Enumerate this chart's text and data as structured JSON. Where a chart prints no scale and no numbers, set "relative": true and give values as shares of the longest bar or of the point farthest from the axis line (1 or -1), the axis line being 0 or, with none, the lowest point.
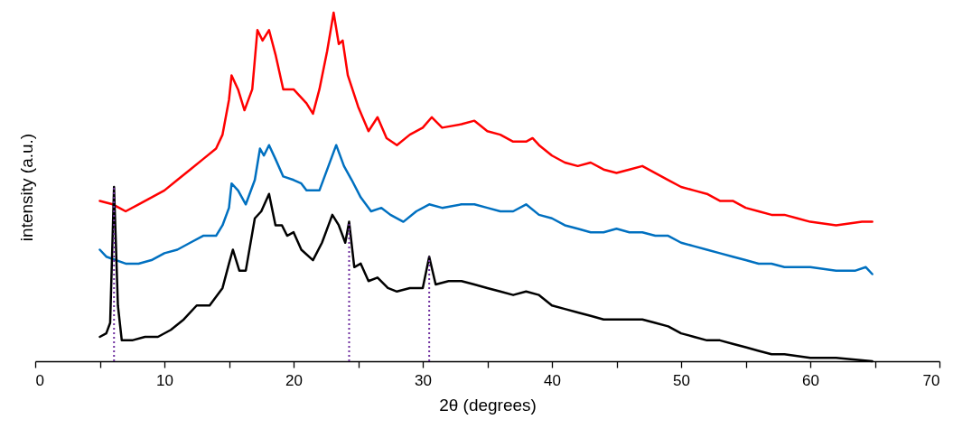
{
  "chart_data": {
    "type": "line",
    "relative": true,
    "xlabel": "2θ (degrees)",
    "ylabel": "intensity (a.u.)",
    "xlim": [
      0,
      70
    ],
    "xticks": [
      0,
      {
        "value": 5,
        "label": null
      },
      10,
      {
        "value": 15,
        "label": null
      },
      20,
      {
        "value": 25,
        "label": null
      },
      30,
      {
        "value": 35,
        "label": null
      },
      40,
      {
        "value": 45,
        "label": null
      },
      50,
      {
        "value": 55,
        "label": null
      },
      60,
      {
        "value": 65,
        "label": null
      },
      70
    ],
    "grid": false,
    "marker": "none",
    "line_style": "solid",
    "series": [
      {
        "color": "#ff0000",
        "x": [
          5,
          6,
          6.5,
          7,
          8,
          9,
          10,
          11,
          12,
          13,
          14,
          14.5,
          15,
          15.2,
          15.7,
          16.2,
          16.8,
          17.2,
          17.6,
          18.1,
          18.6,
          19.2,
          20,
          21,
          21.5,
          22,
          22.6,
          23.1,
          23.5,
          23.8,
          24.2,
          25,
          25.8,
          26.5,
          27.2,
          28,
          29,
          30,
          30.7,
          31.5,
          33,
          34,
          35,
          36,
          37,
          38,
          38.5,
          39,
          40,
          41,
          42,
          43,
          44,
          45,
          46,
          47,
          48,
          49,
          50,
          51,
          52,
          53,
          54,
          55,
          56,
          57,
          58,
          59,
          60,
          62,
          64,
          64.8
        ],
        "values": [
          0.46,
          0.45,
          0.44,
          0.43,
          0.45,
          0.47,
          0.49,
          0.52,
          0.55,
          0.58,
          0.61,
          0.65,
          0.75,
          0.82,
          0.78,
          0.72,
          0.78,
          0.95,
          0.92,
          0.95,
          0.88,
          0.78,
          0.78,
          0.74,
          0.71,
          0.78,
          0.89,
          1.0,
          0.91,
          0.92,
          0.82,
          0.73,
          0.66,
          0.7,
          0.64,
          0.62,
          0.65,
          0.67,
          0.7,
          0.67,
          0.68,
          0.69,
          0.66,
          0.65,
          0.63,
          0.63,
          0.64,
          0.62,
          0.59,
          0.57,
          0.56,
          0.57,
          0.55,
          0.54,
          0.55,
          0.56,
          0.54,
          0.52,
          0.5,
          0.49,
          0.48,
          0.46,
          0.46,
          0.44,
          0.43,
          0.42,
          0.42,
          0.41,
          0.4,
          0.39,
          0.4,
          0.4
        ]
      },
      {
        "color": "#0070c0",
        "x": [
          5,
          5.5,
          7,
          8,
          9,
          10,
          11,
          12,
          13,
          14,
          14.5,
          15,
          15.2,
          15.7,
          16.3,
          17,
          17.4,
          17.7,
          18.1,
          18.6,
          19.2,
          20,
          20.6,
          21,
          22,
          22.7,
          23.3,
          23.9,
          24.5,
          25.2,
          26,
          26.8,
          27.5,
          28.5,
          29.5,
          30.5,
          31.5,
          33,
          34,
          35,
          36,
          37,
          38,
          39,
          40,
          41,
          42,
          43,
          44,
          45,
          46,
          47,
          48,
          49,
          50,
          51,
          52,
          53,
          54,
          55,
          56,
          57,
          58,
          60,
          62,
          63.5,
          64.3,
          64.8
        ],
        "values": [
          0.32,
          0.3,
          0.28,
          0.28,
          0.29,
          0.31,
          0.32,
          0.34,
          0.36,
          0.36,
          0.39,
          0.44,
          0.51,
          0.49,
          0.45,
          0.52,
          0.61,
          0.59,
          0.62,
          0.58,
          0.53,
          0.52,
          0.51,
          0.49,
          0.49,
          0.56,
          0.62,
          0.56,
          0.52,
          0.47,
          0.43,
          0.44,
          0.42,
          0.4,
          0.43,
          0.45,
          0.44,
          0.45,
          0.45,
          0.44,
          0.43,
          0.43,
          0.45,
          0.42,
          0.41,
          0.39,
          0.38,
          0.37,
          0.37,
          0.38,
          0.37,
          0.37,
          0.36,
          0.36,
          0.34,
          0.33,
          0.32,
          0.31,
          0.3,
          0.29,
          0.28,
          0.28,
          0.27,
          0.27,
          0.26,
          0.26,
          0.27,
          0.25
        ]
      },
      {
        "color": "#000000",
        "x": [
          5,
          5.5,
          5.8,
          6.1,
          6.4,
          6.7,
          7.5,
          8.5,
          9.5,
          10.5,
          11.5,
          12.5,
          13.5,
          14.5,
          15,
          15.3,
          15.8,
          16.3,
          17,
          17.5,
          18.1,
          18.6,
          19.1,
          19.5,
          20,
          20.6,
          21.5,
          22.2,
          23,
          23.5,
          24,
          24.3,
          24.7,
          25.2,
          25.8,
          26.5,
          27.3,
          28,
          29,
          30,
          30.5,
          31,
          32,
          33,
          34,
          35,
          36,
          37,
          38,
          39,
          40,
          41,
          42,
          43,
          44,
          45,
          46,
          47,
          48,
          49,
          50,
          51,
          52,
          53,
          54,
          55,
          56,
          57,
          58,
          60,
          62,
          64.8
        ],
        "values": [
          0.07,
          0.08,
          0.11,
          0.5,
          0.16,
          0.06,
          0.06,
          0.07,
          0.07,
          0.09,
          0.12,
          0.16,
          0.16,
          0.21,
          0.28,
          0.32,
          0.26,
          0.26,
          0.41,
          0.43,
          0.48,
          0.39,
          0.39,
          0.36,
          0.37,
          0.32,
          0.29,
          0.34,
          0.42,
          0.39,
          0.34,
          0.4,
          0.27,
          0.28,
          0.23,
          0.24,
          0.21,
          0.2,
          0.21,
          0.21,
          0.3,
          0.22,
          0.23,
          0.23,
          0.22,
          0.21,
          0.2,
          0.19,
          0.2,
          0.19,
          0.16,
          0.15,
          0.14,
          0.13,
          0.12,
          0.12,
          0.12,
          0.12,
          0.11,
          0.1,
          0.08,
          0.07,
          0.06,
          0.06,
          0.05,
          0.04,
          0.03,
          0.02,
          0.02,
          0.01,
          0.01,
          0.0
        ]
      }
    ],
    "ref_lines": [
      {
        "axis": "x",
        "value": 6.1,
        "color": "#7030a0",
        "line_style": "dotted"
      },
      {
        "axis": "x",
        "value": 24.3,
        "color": "#7030a0",
        "line_style": "dotted"
      },
      {
        "axis": "x",
        "value": 30.5,
        "color": "#7030a0",
        "line_style": "dotted"
      }
    ]
  }
}
